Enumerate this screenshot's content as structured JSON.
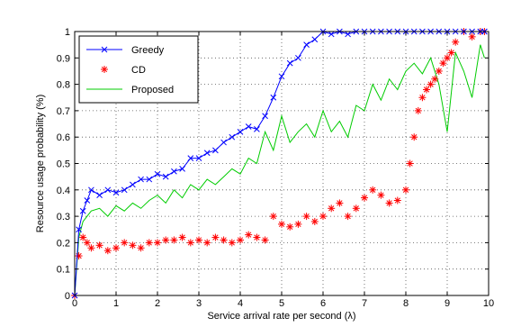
{
  "chart_data": {
    "type": "line",
    "title": "",
    "xlabel": "Service arrival rate per second (λ)",
    "ylabel": "Resource usage probability (%)",
    "xlim": [
      0,
      10
    ],
    "ylim": [
      0,
      1
    ],
    "xticks": [
      0,
      1,
      2,
      3,
      4,
      5,
      6,
      7,
      8,
      9,
      10
    ],
    "yticks": [
      0,
      0.1,
      0.2,
      0.3,
      0.4,
      0.5,
      0.6,
      0.7,
      0.8,
      0.9,
      1
    ],
    "grid": true,
    "legend_position": "top-left",
    "series": [
      {
        "name": "Greedy",
        "color": "#0000ff",
        "marker": "x",
        "line": "solid",
        "x": [
          0.0,
          0.1,
          0.2,
          0.3,
          0.4,
          0.6,
          0.8,
          1.0,
          1.2,
          1.4,
          1.6,
          1.8,
          2.0,
          2.2,
          2.4,
          2.6,
          2.8,
          3.0,
          3.2,
          3.4,
          3.6,
          3.8,
          4.0,
          4.2,
          4.4,
          4.6,
          4.8,
          5.0,
          5.2,
          5.4,
          5.6,
          5.8,
          6.0,
          6.2,
          6.4,
          6.6,
          6.8,
          7.0,
          7.2,
          7.4,
          7.6,
          7.8,
          8.0,
          8.2,
          8.4,
          8.6,
          8.8,
          9.0,
          9.2,
          9.4,
          9.6,
          9.8,
          9.9
        ],
        "y": [
          0.0,
          0.25,
          0.32,
          0.36,
          0.4,
          0.38,
          0.4,
          0.39,
          0.4,
          0.42,
          0.44,
          0.44,
          0.46,
          0.45,
          0.47,
          0.48,
          0.52,
          0.52,
          0.54,
          0.55,
          0.58,
          0.6,
          0.62,
          0.64,
          0.63,
          0.68,
          0.75,
          0.83,
          0.88,
          0.9,
          0.95,
          0.97,
          1.0,
          0.99,
          1.0,
          0.99,
          1.0,
          1.0,
          1.0,
          1.0,
          1.0,
          1.0,
          1.0,
          1.0,
          1.0,
          1.0,
          1.0,
          1.0,
          1.0,
          1.0,
          1.0,
          1.0,
          1.0
        ]
      },
      {
        "name": "CD",
        "color": "#ff0000",
        "marker": "*",
        "line": "none",
        "x": [
          0.0,
          0.1,
          0.2,
          0.3,
          0.4,
          0.6,
          0.8,
          1.0,
          1.2,
          1.4,
          1.6,
          1.8,
          2.0,
          2.2,
          2.4,
          2.6,
          2.8,
          3.0,
          3.2,
          3.4,
          3.6,
          3.8,
          4.0,
          4.2,
          4.4,
          4.6,
          4.8,
          5.0,
          5.2,
          5.4,
          5.6,
          5.8,
          6.0,
          6.2,
          6.4,
          6.6,
          6.8,
          7.0,
          7.2,
          7.4,
          7.6,
          7.8,
          8.0,
          8.1,
          8.2,
          8.3,
          8.4,
          8.5,
          8.6,
          8.7,
          8.8,
          8.9,
          9.0,
          9.1,
          9.2,
          9.4,
          9.6,
          9.8,
          9.9
        ],
        "y": [
          0.0,
          0.15,
          0.22,
          0.2,
          0.18,
          0.19,
          0.17,
          0.18,
          0.2,
          0.19,
          0.18,
          0.2,
          0.2,
          0.21,
          0.21,
          0.22,
          0.2,
          0.21,
          0.2,
          0.22,
          0.21,
          0.2,
          0.21,
          0.23,
          0.22,
          0.21,
          0.3,
          0.27,
          0.26,
          0.27,
          0.3,
          0.28,
          0.3,
          0.33,
          0.35,
          0.3,
          0.33,
          0.37,
          0.4,
          0.38,
          0.35,
          0.36,
          0.4,
          0.5,
          0.6,
          0.7,
          0.75,
          0.78,
          0.8,
          0.82,
          0.85,
          0.88,
          0.9,
          0.92,
          0.96,
          1.0,
          0.98,
          1.0,
          1.0
        ]
      },
      {
        "name": "Proposed",
        "color": "#00cc00",
        "marker": "none",
        "line": "solid",
        "x": [
          0.0,
          0.1,
          0.2,
          0.3,
          0.4,
          0.6,
          0.8,
          1.0,
          1.2,
          1.4,
          1.6,
          1.8,
          2.0,
          2.2,
          2.4,
          2.6,
          2.8,
          3.0,
          3.2,
          3.4,
          3.6,
          3.8,
          4.0,
          4.2,
          4.4,
          4.6,
          4.8,
          5.0,
          5.2,
          5.4,
          5.6,
          5.8,
          6.0,
          6.2,
          6.4,
          6.6,
          6.8,
          7.0,
          7.2,
          7.4,
          7.6,
          7.8,
          8.0,
          8.2,
          8.4,
          8.6,
          8.8,
          9.0,
          9.2,
          9.4,
          9.6,
          9.8,
          9.9
        ],
        "y": [
          0.0,
          0.22,
          0.28,
          0.3,
          0.32,
          0.33,
          0.3,
          0.34,
          0.32,
          0.35,
          0.33,
          0.36,
          0.38,
          0.35,
          0.4,
          0.37,
          0.42,
          0.4,
          0.44,
          0.42,
          0.45,
          0.48,
          0.46,
          0.52,
          0.5,
          0.62,
          0.55,
          0.68,
          0.58,
          0.62,
          0.65,
          0.6,
          0.7,
          0.62,
          0.66,
          0.6,
          0.72,
          0.7,
          0.8,
          0.74,
          0.82,
          0.78,
          0.85,
          0.88,
          0.84,
          0.9,
          0.8,
          0.62,
          0.92,
          0.85,
          0.75,
          0.95,
          0.9
        ]
      }
    ]
  }
}
